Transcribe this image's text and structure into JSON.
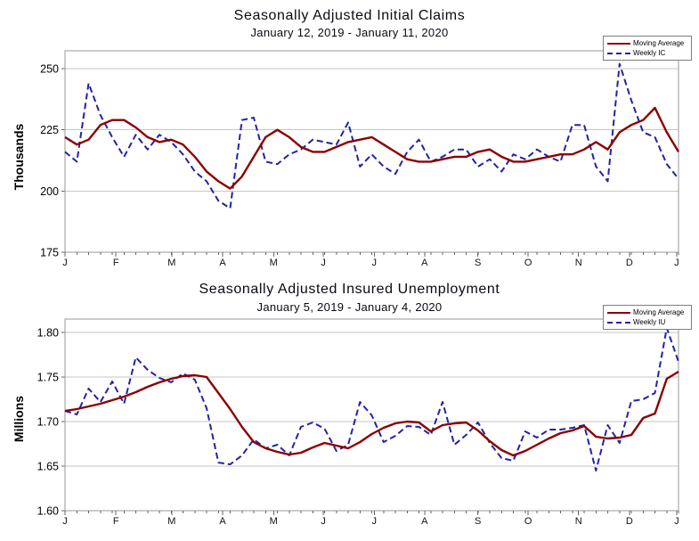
{
  "page": {
    "background": "#ffffff",
    "text_color": "#000000"
  },
  "colors": {
    "moving_average_line": "#8b0000",
    "weekly_line": "#2222a8",
    "gridline": "#c6c6c6",
    "plot_border": "#999999",
    "tick": "#666666"
  },
  "chart_data": [
    {
      "type": "line",
      "title": "Seasonally Adjusted Initial Claims",
      "subtitle": "January 12, 2019 - January 11, 2020",
      "ylabel": "Thousands",
      "unit": "thousands",
      "grid": true,
      "legend_position": "top-right",
      "ylim": [
        175,
        257.3
      ],
      "yticks": [
        {
          "value": 250,
          "label": "250"
        },
        {
          "value": 225,
          "label": "225"
        },
        {
          "value": 200,
          "label": "200"
        },
        {
          "value": 175,
          "label": "175"
        }
      ],
      "x_months": {
        "labels": [
          "J",
          "F",
          "M",
          "A",
          "M",
          "J",
          "J",
          "A",
          "S",
          "O",
          "N",
          "D",
          "J"
        ],
        "fracs": [
          0,
          0.083,
          0.174,
          0.257,
          0.34,
          0.421,
          0.504,
          0.586,
          0.673,
          0.755,
          0.837,
          0.92,
          0.997
        ]
      },
      "series": [
        {
          "name": "Moving Average",
          "style": "solid",
          "color": "#8b0000",
          "values": [
            222,
            219,
            221,
            227,
            229,
            229,
            226,
            222,
            220,
            221,
            219,
            214,
            208,
            204,
            201,
            206,
            214,
            222,
            225,
            222,
            218,
            216,
            216,
            218,
            220,
            221,
            222,
            219,
            216,
            213,
            212,
            212,
            213,
            214,
            214,
            216,
            217,
            214,
            212,
            212,
            213,
            214,
            215,
            215,
            217,
            220,
            217,
            224,
            227,
            229,
            234,
            224,
            216
          ]
        },
        {
          "name": "Weekly IC",
          "style": "dashed",
          "color": "#2222a8",
          "values": [
            216,
            212,
            244,
            231,
            222,
            214,
            223,
            217,
            223,
            220,
            215,
            208,
            204,
            196,
            193,
            229,
            230,
            212,
            211,
            215,
            217,
            221,
            220,
            219,
            228,
            210,
            215,
            210,
            207,
            216,
            221,
            212,
            214,
            217,
            217,
            210,
            213,
            208,
            215,
            213,
            217,
            214,
            212,
            227,
            227,
            210,
            204,
            252,
            237,
            224,
            222,
            211,
            205
          ]
        }
      ]
    },
    {
      "type": "line",
      "title": "Seasonally Adjusted Insured Unemployment",
      "subtitle": "January 5, 2019 - January 4, 2020",
      "ylabel": "Millions",
      "unit": "millions",
      "grid": true,
      "legend_position": "top-right",
      "ylim": [
        1.6,
        1.815
      ],
      "yticks": [
        {
          "value": 1.8,
          "label": "1.80"
        },
        {
          "value": 1.75,
          "label": "1.75"
        },
        {
          "value": 1.7,
          "label": "1.70"
        },
        {
          "value": 1.65,
          "label": "1.65"
        },
        {
          "value": 1.6,
          "label": "1.60"
        }
      ],
      "x_months": {
        "labels": [
          "J",
          "F",
          "M",
          "A",
          "M",
          "J",
          "J",
          "A",
          "S",
          "O",
          "N",
          "D",
          "J"
        ],
        "fracs": [
          0,
          0.083,
          0.174,
          0.257,
          0.34,
          0.421,
          0.504,
          0.586,
          0.673,
          0.755,
          0.837,
          0.92,
          0.997
        ]
      },
      "series": [
        {
          "name": "Moving Average",
          "style": "solid",
          "color": "#8b0000",
          "values": [
            1.712,
            1.714,
            1.717,
            1.72,
            1.724,
            1.728,
            1.733,
            1.739,
            1.744,
            1.748,
            1.751,
            1.752,
            1.75,
            1.732,
            1.714,
            1.694,
            1.677,
            1.67,
            1.666,
            1.663,
            1.665,
            1.671,
            1.676,
            1.673,
            1.67,
            1.677,
            1.686,
            1.693,
            1.698,
            1.7,
            1.699,
            1.689,
            1.696,
            1.698,
            1.699,
            1.69,
            1.678,
            1.668,
            1.662,
            1.667,
            1.674,
            1.681,
            1.687,
            1.69,
            1.695,
            1.683,
            1.681,
            1.682,
            1.685,
            1.704,
            1.709,
            1.748,
            1.756
          ]
        },
        {
          "name": "Weekly IU",
          "style": "dashed",
          "color": "#2222a8",
          "values": [
            1.712,
            1.708,
            1.737,
            1.722,
            1.745,
            1.72,
            1.772,
            1.758,
            1.749,
            1.744,
            1.754,
            1.747,
            1.715,
            1.654,
            1.652,
            1.662,
            1.68,
            1.67,
            1.674,
            1.662,
            1.694,
            1.699,
            1.692,
            1.667,
            1.674,
            1.722,
            1.707,
            1.677,
            1.684,
            1.695,
            1.694,
            1.685,
            1.722,
            1.674,
            1.685,
            1.699,
            1.676,
            1.659,
            1.656,
            1.689,
            1.682,
            1.691,
            1.691,
            1.693,
            1.696,
            1.645,
            1.696,
            1.676,
            1.723,
            1.725,
            1.732,
            1.805,
            1.767
          ]
        }
      ]
    }
  ]
}
